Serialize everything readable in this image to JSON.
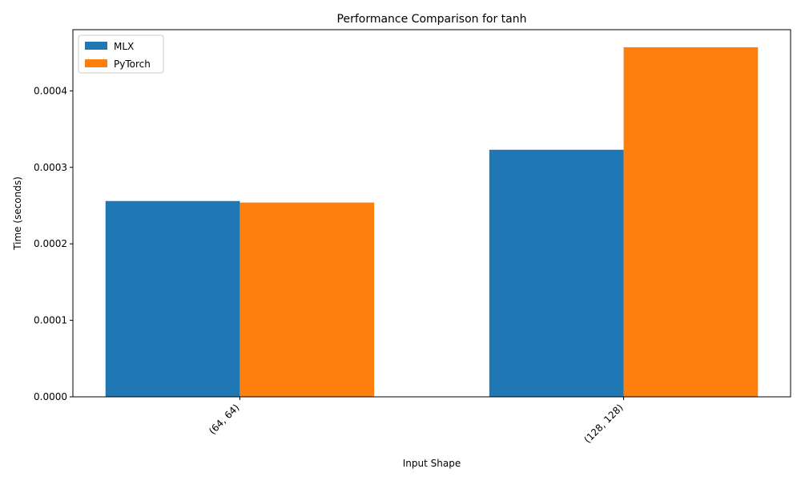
{
  "chart_data": {
    "type": "bar",
    "title": "Performance Comparison for tanh",
    "xlabel": "Input Shape",
    "ylabel": "Time (seconds)",
    "categories": [
      "(64, 64)",
      "(128, 128)"
    ],
    "series": [
      {
        "name": "MLX",
        "color": "#1f77b4",
        "values": [
          0.000256,
          0.000323
        ]
      },
      {
        "name": "PyTorch",
        "color": "#ff7f0e",
        "values": [
          0.000254,
          0.000457
        ]
      }
    ],
    "ylim": [
      0,
      0.00048
    ],
    "yticks": [
      0.0,
      0.0001,
      0.0002,
      0.0003,
      0.0004
    ],
    "ytick_labels": [
      "0.0000",
      "0.0001",
      "0.0002",
      "0.0003",
      "0.0004"
    ],
    "xtick_rotation": 45,
    "legend": "top-left",
    "grid": false
  }
}
